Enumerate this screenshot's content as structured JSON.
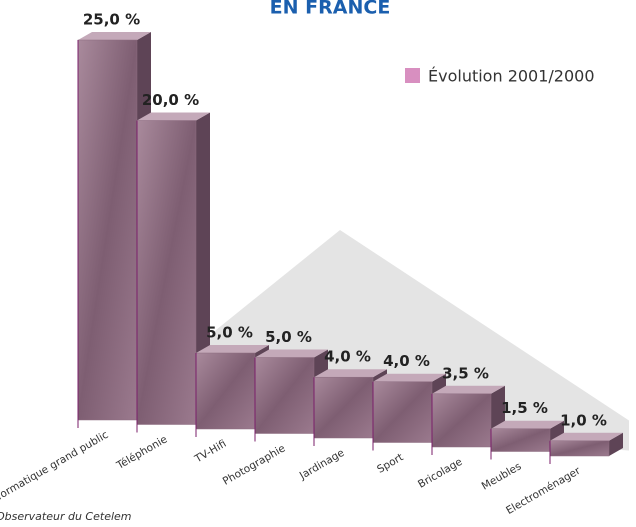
{
  "chart_data": {
    "type": "bar3d",
    "title": "EN FRANCE",
    "legend": "Évolution 2001/2000",
    "legend_color": "#d88fc0",
    "source": "Observateur du Cetelem",
    "color": "#8c6c80",
    "categories": [
      "Micro-informatique grand public",
      "Téléphonie",
      "TV-Hifi",
      "Photographie",
      "Jardinage",
      "Sport",
      "Bricolage",
      "Meubles",
      "Electroménager"
    ],
    "values": [
      25,
      20,
      5,
      5,
      4,
      4,
      3.5,
      1.5,
      1
    ],
    "value_labels": [
      "25,0 %",
      "20,0 %",
      "5,0 %",
      "5,0 %",
      "4,0 %",
      "4,0 %",
      "3,5 %",
      "1,5 %",
      "1,0 %"
    ]
  }
}
